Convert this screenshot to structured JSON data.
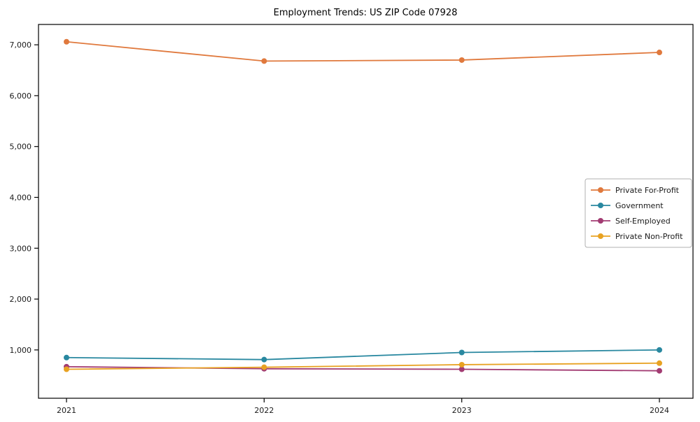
{
  "chart_data": {
    "type": "line",
    "title": "Employment Trends: US ZIP Code 07928",
    "xlabel": "",
    "ylabel": "",
    "categories": [
      "2021",
      "2022",
      "2023",
      "2024"
    ],
    "x": [
      2021,
      2022,
      2023,
      2024
    ],
    "series": [
      {
        "name": "Private For-Profit",
        "color": "#e0793d",
        "values": [
          7060,
          6680,
          6700,
          6850
        ]
      },
      {
        "name": "Government",
        "color": "#2988a0",
        "values": [
          850,
          810,
          950,
          1000
        ]
      },
      {
        "name": "Self-Employed",
        "color": "#a23b72",
        "values": [
          670,
          630,
          620,
          590
        ]
      },
      {
        "name": "Private Non-Profit",
        "color": "#e8a222",
        "values": [
          620,
          660,
          710,
          740
        ]
      }
    ],
    "ylim": [
      50,
      7400
    ],
    "yticks": [
      1000,
      2000,
      3000,
      4000,
      5000,
      6000,
      7000
    ],
    "ytick_labels": [
      "1,000",
      "2,000",
      "3,000",
      "4,000",
      "5,000",
      "6,000",
      "7,000"
    ],
    "grid": false,
    "legend_position": "center right",
    "marker": "circle",
    "axis_color": "#000000",
    "legend_border_color": "#b0b0b0"
  }
}
